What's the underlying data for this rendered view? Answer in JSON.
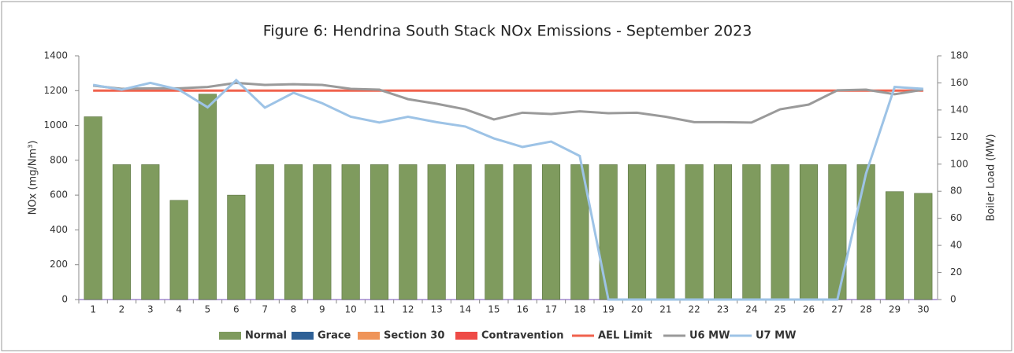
{
  "chart_data": {
    "type": "bar",
    "title": "Figure 6: Hendrina South Stack NOx Emissions -  September 2023",
    "y_label": "NOx (mg/Nm³)",
    "y2_label": "Boiler Load (MW)",
    "categories": [
      "1",
      "2",
      "3",
      "4",
      "5",
      "6",
      "7",
      "8",
      "9",
      "10",
      "11",
      "12",
      "13",
      "14",
      "15",
      "16",
      "17",
      "18",
      "19",
      "20",
      "21",
      "22",
      "23",
      "24",
      "25",
      "26",
      "27",
      "28",
      "29",
      "30"
    ],
    "series": [
      {
        "name": "Normal",
        "kind": "bar",
        "color": "#7f9b5e",
        "values": [
          1050,
          775,
          775,
          570,
          1180,
          600,
          775,
          775,
          775,
          775,
          775,
          775,
          775,
          775,
          775,
          775,
          775,
          775,
          775,
          775,
          775,
          775,
          775,
          775,
          775,
          775,
          775,
          775,
          620,
          610
        ]
      },
      {
        "name": "Grace",
        "kind": "bar",
        "color": "#2e6096",
        "values": [
          0,
          0,
          0,
          0,
          0,
          0,
          0,
          0,
          0,
          0,
          0,
          0,
          0,
          0,
          0,
          0,
          0,
          0,
          0,
          0,
          0,
          0,
          0,
          0,
          0,
          0,
          0,
          0,
          0,
          0
        ]
      },
      {
        "name": "Section 30",
        "kind": "bar",
        "color": "#ef9459",
        "values": [
          0,
          0,
          0,
          0,
          0,
          0,
          0,
          0,
          0,
          0,
          0,
          0,
          0,
          0,
          0,
          0,
          0,
          0,
          0,
          0,
          0,
          0,
          0,
          0,
          0,
          0,
          0,
          0,
          0,
          0
        ]
      },
      {
        "name": "Contravention",
        "kind": "bar",
        "color": "#ee4b46",
        "values": [
          0,
          0,
          0,
          0,
          0,
          0,
          0,
          0,
          0,
          0,
          0,
          0,
          0,
          0,
          0,
          0,
          0,
          0,
          0,
          0,
          0,
          0,
          0,
          0,
          0,
          0,
          0,
          0,
          0,
          0
        ]
      },
      {
        "name": "AEL Limit",
        "kind": "line",
        "color": "#f0624d",
        "values": [
          1200,
          1200,
          1200,
          1200,
          1200,
          1200,
          1200,
          1200,
          1200,
          1200,
          1200,
          1200,
          1200,
          1200,
          1200,
          1200,
          1200,
          1200,
          1200,
          1200,
          1200,
          1200,
          1200,
          1200,
          1200,
          1200,
          1200,
          1200,
          1200,
          1200
        ]
      },
      {
        "name": "U6 MW",
        "kind": "line",
        "axis": "y2",
        "color": "#9a9a9a",
        "values": [
          158,
          155.6,
          156,
          156,
          157,
          160,
          158.5,
          159,
          158.5,
          155.6,
          155,
          148,
          144.6,
          140.5,
          133,
          138,
          137,
          139,
          137.6,
          138,
          135,
          131,
          131,
          130.7,
          140.5,
          144,
          154.5,
          155,
          151.6,
          155
        ]
      },
      {
        "name": "U7 MW",
        "kind": "line",
        "axis": "y2",
        "color": "#9dc3e6",
        "values": [
          158.5,
          155,
          160,
          155,
          142,
          162,
          141.7,
          152.7,
          145,
          135,
          130.7,
          135,
          131,
          127.8,
          119,
          112.7,
          116.7,
          106,
          0,
          0,
          0,
          0,
          0,
          0,
          0,
          0,
          0,
          93,
          157,
          155.6
        ]
      }
    ],
    "ylim": [
      0,
      1400
    ],
    "yticks": [
      0,
      200,
      400,
      600,
      800,
      1000,
      1200,
      1400
    ],
    "y2lim": [
      0,
      180
    ],
    "y2ticks": [
      0,
      20,
      40,
      60,
      80,
      100,
      120,
      140,
      160,
      180
    ],
    "legend": "bottom"
  }
}
